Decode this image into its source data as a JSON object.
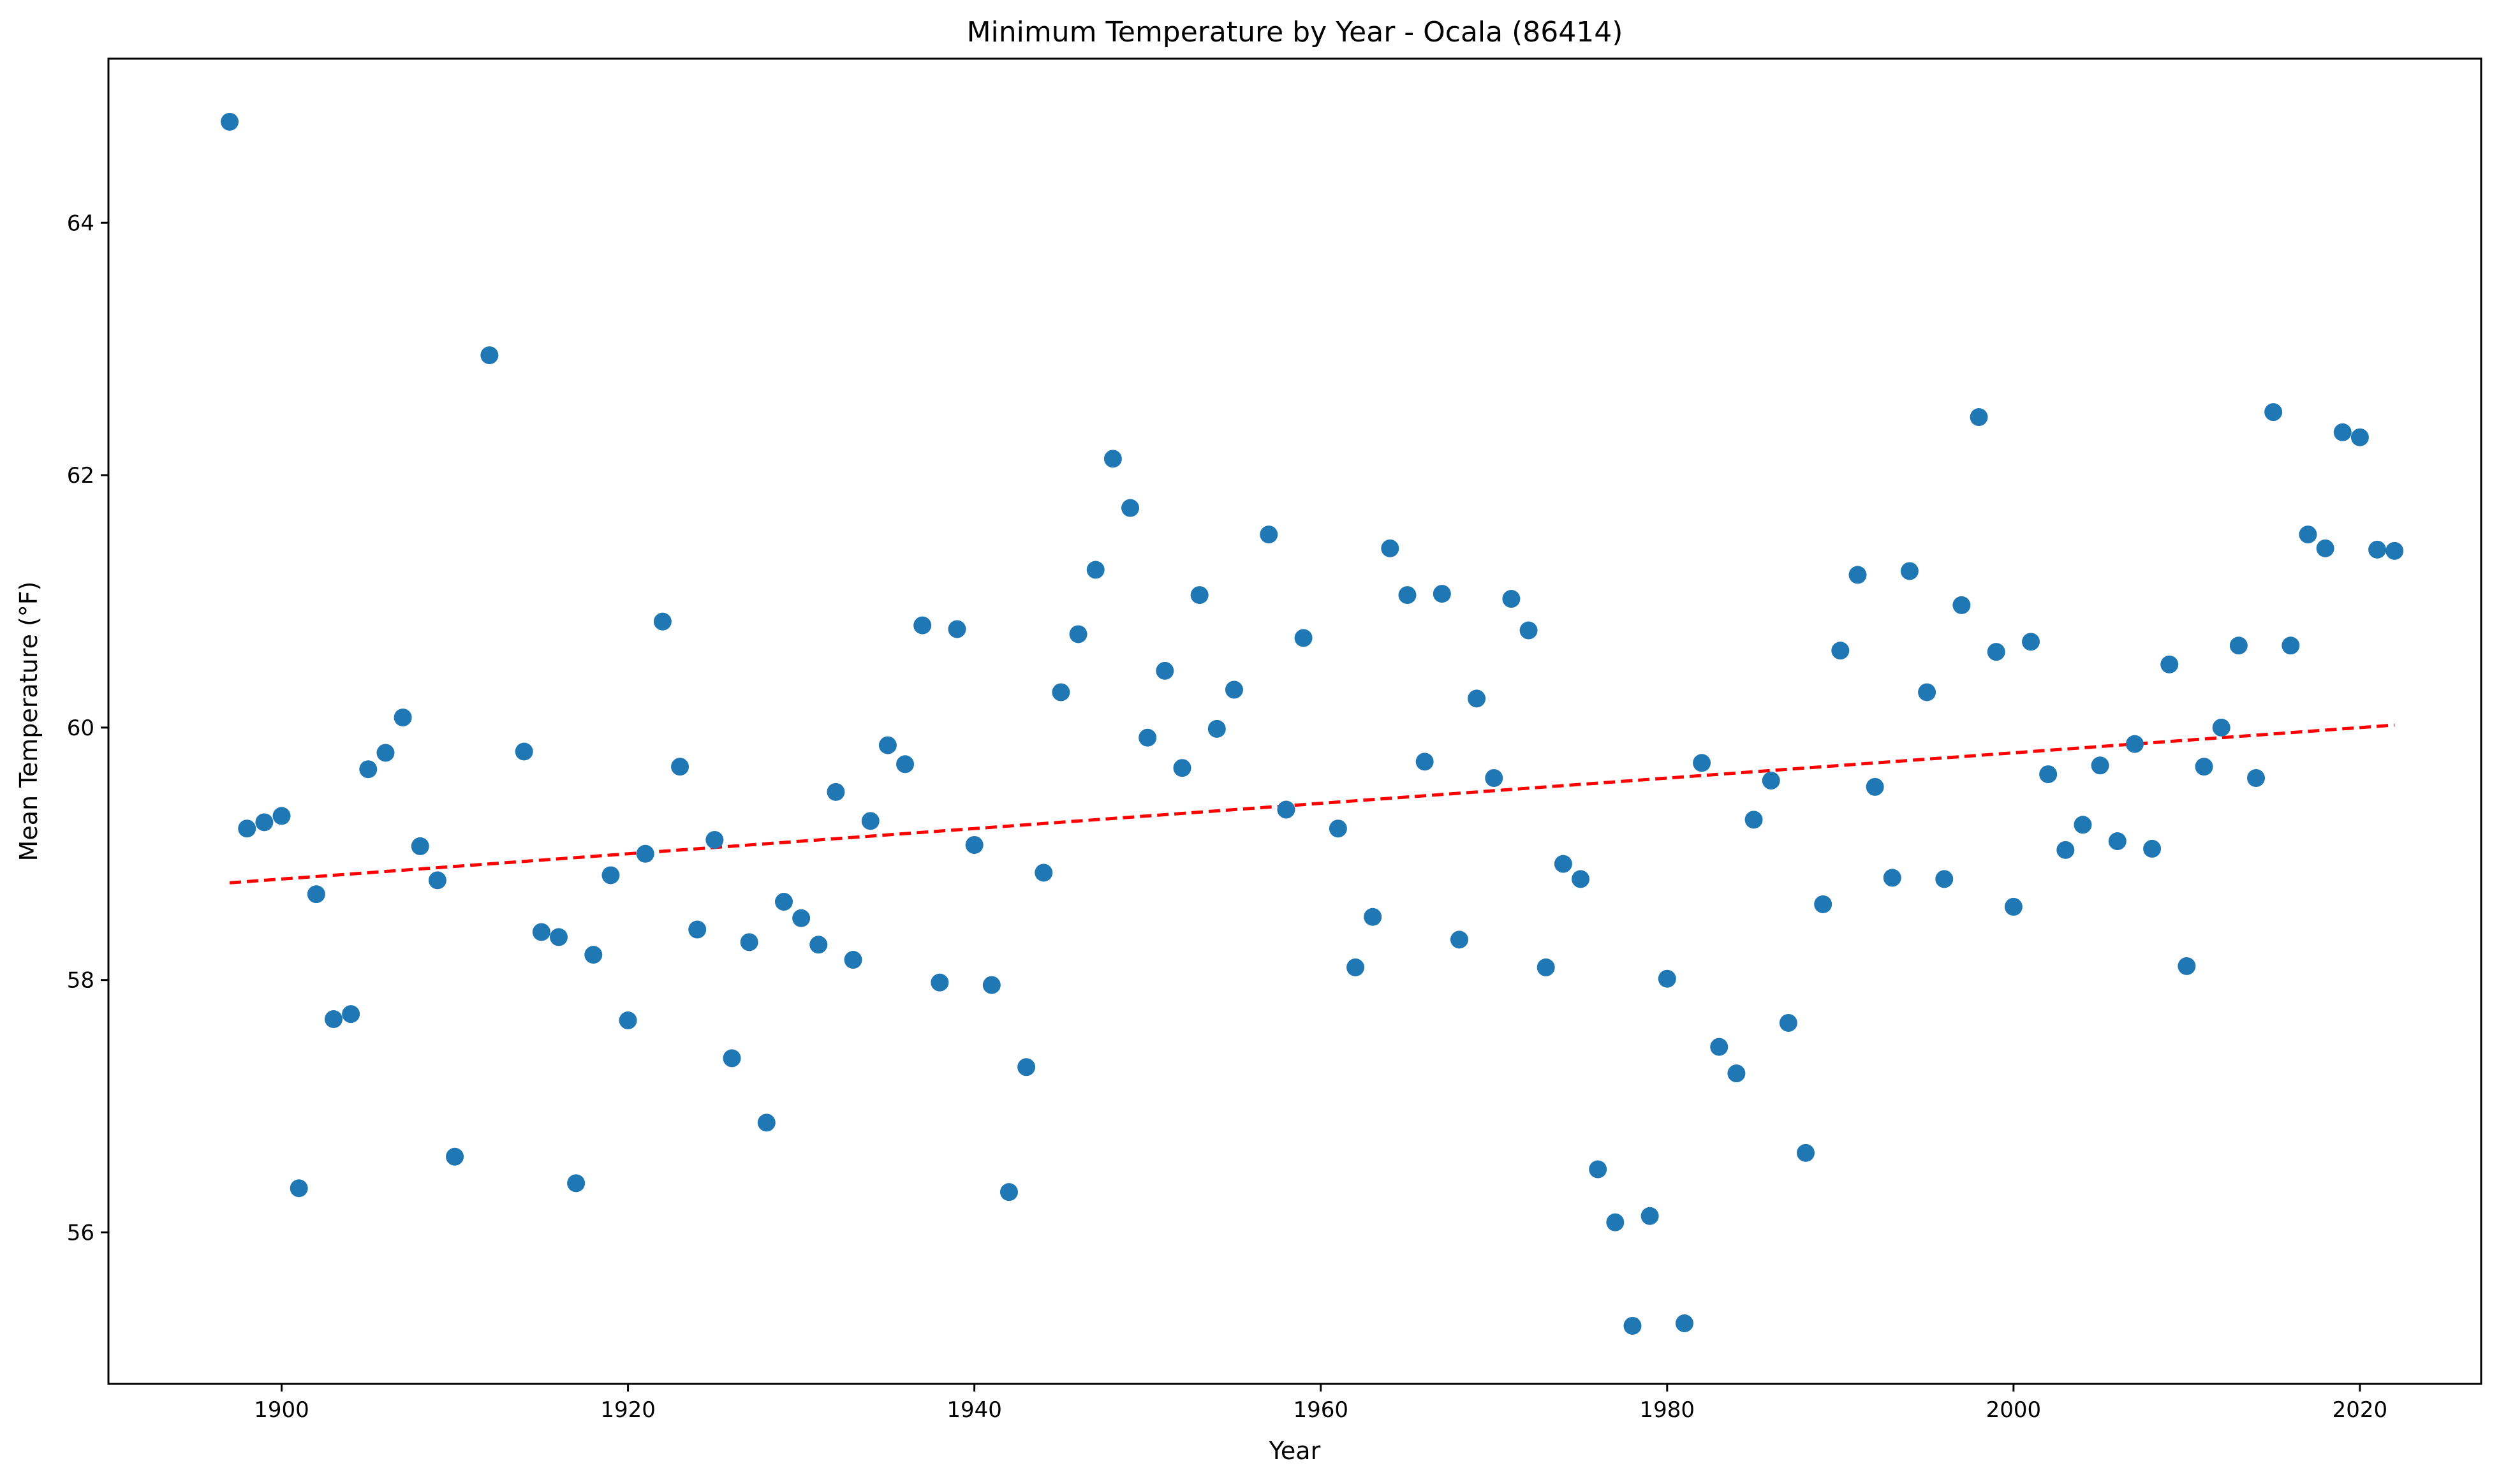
{
  "chart_data": {
    "type": "scatter",
    "title": "Minimum Temperature by Year - Ocala (86414)",
    "xlabel": "Year",
    "ylabel": "Mean Temperature (°F)",
    "xlim": [
      1890,
      2027
    ],
    "ylim": [
      54.8,
      65.3
    ],
    "xticks": [
      1900,
      1920,
      1940,
      1960,
      1980,
      2000,
      2020
    ],
    "yticks": [
      56,
      58,
      60,
      62,
      64
    ],
    "grid": false,
    "legend": "none",
    "colors": {
      "points": "#1f77b4",
      "trend": "#ff0000"
    },
    "trendline": {
      "style": "dashed",
      "x": [
        1897,
        2022
      ],
      "y": [
        58.77,
        60.02
      ]
    },
    "x": [
      1897,
      1898,
      1899,
      1900,
      1901,
      1902,
      1903,
      1904,
      1905,
      1906,
      1907,
      1908,
      1909,
      1910,
      1912,
      1914,
      1915,
      1916,
      1917,
      1918,
      1919,
      1920,
      1921,
      1922,
      1923,
      1924,
      1925,
      1926,
      1927,
      1928,
      1929,
      1930,
      1931,
      1932,
      1933,
      1934,
      1935,
      1936,
      1937,
      1938,
      1939,
      1940,
      1941,
      1942,
      1943,
      1944,
      1945,
      1946,
      1947,
      1948,
      1949,
      1950,
      1951,
      1952,
      1953,
      1954,
      1955,
      1957,
      1958,
      1959,
      1961,
      1962,
      1963,
      1964,
      1965,
      1966,
      1967,
      1968,
      1969,
      1970,
      1971,
      1972,
      1973,
      1974,
      1975,
      1976,
      1977,
      1978,
      1979,
      1980,
      1981,
      1982,
      1983,
      1984,
      1985,
      1986,
      1987,
      1988,
      1989,
      1990,
      1991,
      1992,
      1993,
      1994,
      1995,
      1996,
      1997,
      1998,
      1999,
      2000,
      2001,
      2002,
      2003,
      2004,
      2005,
      2006,
      2007,
      2008,
      2009,
      2010,
      2011,
      2012,
      2013,
      2014,
      2015,
      2016,
      2017,
      2018,
      2019,
      2020,
      2021,
      2022
    ],
    "y": [
      64.8,
      59.2,
      59.25,
      59.3,
      56.35,
      58.68,
      57.69,
      57.73,
      59.67,
      59.8,
      60.08,
      59.06,
      58.79,
      56.6,
      62.95,
      59.81,
      58.38,
      58.34,
      56.39,
      58.2,
      58.83,
      57.68,
      59.0,
      60.84,
      59.69,
      58.4,
      59.11,
      57.38,
      58.3,
      56.87,
      58.62,
      58.49,
      58.28,
      59.49,
      58.16,
      59.26,
      59.86,
      59.71,
      60.81,
      57.98,
      60.78,
      59.07,
      57.96,
      56.32,
      57.31,
      58.85,
      60.28,
      60.74,
      61.25,
      62.13,
      61.74,
      59.92,
      60.45,
      59.68,
      61.05,
      59.99,
      60.3,
      61.53,
      59.35,
      60.71,
      59.2,
      58.1,
      58.5,
      61.42,
      61.05,
      59.73,
      61.06,
      58.32,
      60.23,
      59.6,
      61.02,
      60.77,
      58.1,
      58.92,
      58.8,
      56.5,
      56.08,
      55.26,
      56.13,
      58.01,
      55.28,
      59.72,
      57.47,
      57.26,
      59.27,
      59.58,
      57.66,
      56.63,
      58.6,
      60.61,
      61.21,
      59.53,
      58.81,
      61.24,
      60.28,
      58.8,
      60.97,
      62.46,
      60.6,
      58.58,
      60.68,
      59.63,
      59.03,
      59.23,
      59.7,
      59.1,
      59.87,
      59.04,
      60.5,
      58.11,
      59.69,
      60.0,
      60.65,
      59.6,
      62.5,
      60.65,
      61.53,
      61.42,
      62.34,
      62.3,
      61.41,
      61.4
    ]
  }
}
